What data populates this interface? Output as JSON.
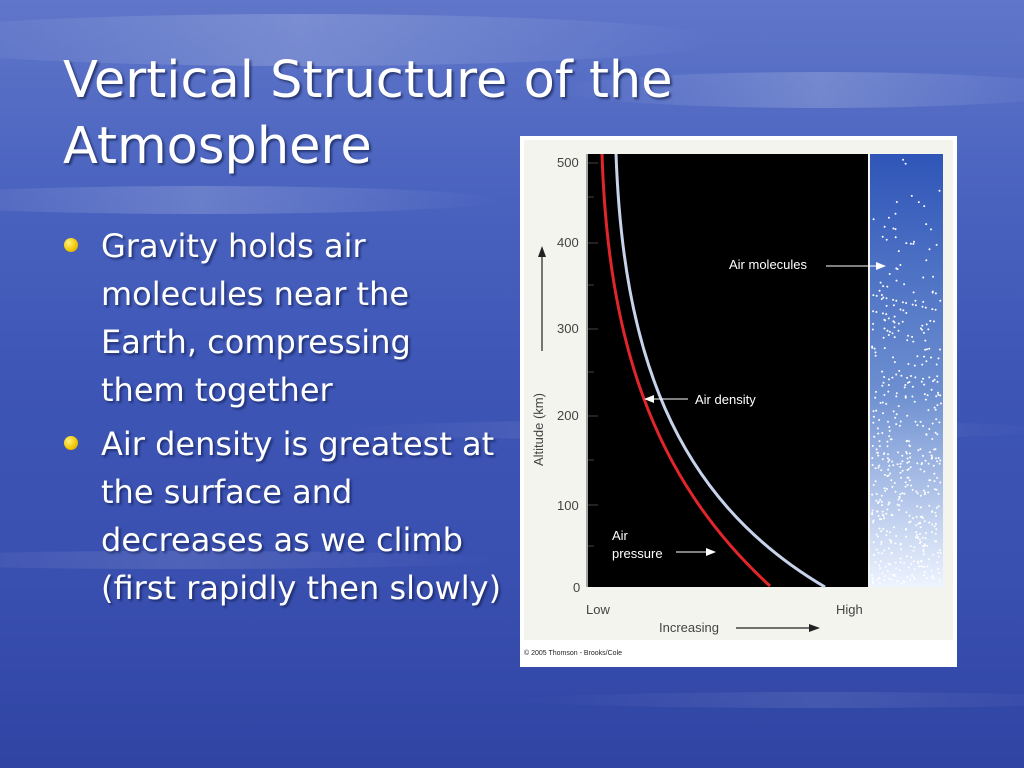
{
  "slide": {
    "title": "Vertical Structure of the Atmosphere",
    "bullets": [
      "Gravity holds air molecules near the Earth, compressing them together",
      "Air density is greatest at the surface and decreases as we climb (first rapidly then slowly)"
    ]
  },
  "figure": {
    "y_axis_label": "Altitude (km)",
    "y_ticks": [
      "500",
      "400",
      "300",
      "200",
      "100",
      "0"
    ],
    "x_low_label": "Low",
    "x_high_label": "High",
    "x_axis_label": "Increasing",
    "labels": {
      "air_molecules": "Air molecules",
      "air_density": "Air density",
      "air_pressure_line1": "Air",
      "air_pressure_line2": "pressure"
    },
    "credit": "© 2005 Thomson - Brooks/Cole",
    "colors": {
      "air_pressure_curve": "#e0262b",
      "air_density_curve": "#c7d3ea",
      "plot_background": "#000000",
      "molecule_panel_top": "#2f55b8",
      "molecule_panel_bottom": "#eef4ff"
    }
  }
}
